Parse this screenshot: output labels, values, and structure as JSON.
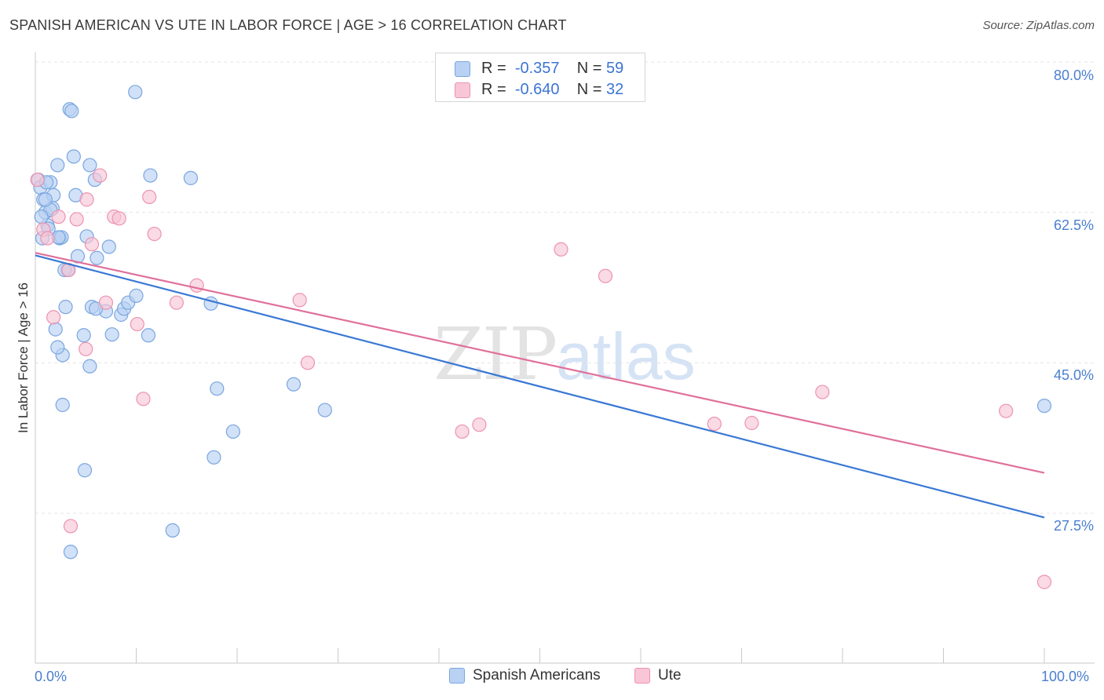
{
  "header": {
    "title": "SPANISH AMERICAN VS UTE IN LABOR FORCE | AGE > 16 CORRELATION CHART",
    "source": "Source: ZipAtlas.com"
  },
  "watermark": {
    "part1": "ZIP",
    "part2": "atlas"
  },
  "legend_top": {
    "rows": [
      {
        "r_label": "R =",
        "r_value": "-0.357",
        "n_label": "N =",
        "n_value": "59"
      },
      {
        "r_label": "R =",
        "r_value": "-0.640",
        "n_label": "N =",
        "n_value": "32"
      }
    ]
  },
  "colors": {
    "blue_fill": "#b9d1f3",
    "blue_stroke": "#7aa6e0",
    "blue_line": "#3a78d4",
    "pink_fill": "#f8c6d6",
    "pink_stroke": "#ec93b1",
    "pink_line": "#e0709a",
    "axis_text": "#4a7fd0",
    "grid": "#e4e4e4"
  },
  "chart_data": {
    "type": "scatter",
    "title": "SPANISH AMERICAN VS UTE IN LABOR FORCE | AGE > 16 CORRELATION CHART",
    "xlabel": "",
    "ylabel": "In Labor Force | Age > 16",
    "xlim": [
      0,
      100
    ],
    "ylim": [
      9,
      82
    ],
    "x_tick_labels": [
      "0.0%",
      "100.0%"
    ],
    "y_ticks": [
      27.5,
      45.0,
      62.5,
      80.0
    ],
    "y_tick_labels": [
      "27.5%",
      "45.0%",
      "62.5%",
      "80.0%"
    ],
    "grid": true,
    "legend_position": "bottom-center",
    "series": [
      {
        "name": "Spanish Americans",
        "r": -0.357,
        "n": 59,
        "trend": {
          "x": [
            0,
            100
          ],
          "y": [
            57.5,
            27.0
          ]
        },
        "points": [
          [
            0.3,
            66.3
          ],
          [
            0.5,
            65.4
          ],
          [
            0.8,
            64.0
          ],
          [
            1.0,
            62.5
          ],
          [
            1.2,
            61.0
          ],
          [
            1.5,
            66.0
          ],
          [
            1.8,
            64.5
          ],
          [
            1.3,
            60.6
          ],
          [
            0.7,
            59.5
          ],
          [
            1.7,
            63.0
          ],
          [
            2.2,
            68.0
          ],
          [
            2.4,
            59.5
          ],
          [
            2.6,
            59.6
          ],
          [
            3.2,
            55.8
          ],
          [
            3.4,
            74.5
          ],
          [
            3.6,
            74.3
          ],
          [
            3.8,
            69.0
          ],
          [
            4.0,
            64.5
          ],
          [
            4.2,
            57.4
          ],
          [
            4.8,
            48.2
          ],
          [
            5.1,
            59.7
          ],
          [
            5.4,
            68.0
          ],
          [
            5.6,
            51.5
          ],
          [
            5.9,
            66.3
          ],
          [
            6.1,
            57.2
          ],
          [
            7.0,
            51.0
          ],
          [
            7.3,
            58.5
          ],
          [
            7.6,
            48.3
          ],
          [
            8.5,
            50.6
          ],
          [
            8.8,
            51.3
          ],
          [
            9.2,
            52.0
          ],
          [
            10.0,
            52.8
          ],
          [
            9.9,
            76.5
          ],
          [
            11.2,
            48.2
          ],
          [
            11.4,
            66.8
          ],
          [
            15.4,
            66.5
          ],
          [
            17.4,
            51.9
          ],
          [
            18.0,
            42.0
          ],
          [
            19.6,
            37.0
          ],
          [
            17.7,
            34.0
          ],
          [
            25.6,
            42.5
          ],
          [
            28.7,
            39.5
          ],
          [
            13.6,
            25.5
          ],
          [
            3.5,
            23.0
          ],
          [
            4.9,
            32.5
          ],
          [
            2.7,
            40.1
          ],
          [
            2.7,
            45.9
          ],
          [
            2.2,
            46.8
          ],
          [
            2.0,
            48.9
          ],
          [
            5.4,
            44.6
          ],
          [
            3.0,
            51.5
          ],
          [
            6.0,
            51.3
          ],
          [
            2.9,
            55.8
          ],
          [
            1.5,
            62.8
          ],
          [
            1.0,
            64.0
          ],
          [
            2.3,
            59.6
          ],
          [
            0.6,
            62.0
          ],
          [
            1.1,
            66.0
          ],
          [
            100.0,
            40.0
          ]
        ]
      },
      {
        "name": "Ute",
        "r": -0.64,
        "n": 32,
        "trend": {
          "x": [
            0,
            100
          ],
          "y": [
            57.8,
            32.2
          ]
        },
        "points": [
          [
            0.2,
            66.3
          ],
          [
            0.8,
            60.5
          ],
          [
            1.2,
            59.5
          ],
          [
            2.3,
            62.0
          ],
          [
            1.8,
            50.3
          ],
          [
            3.5,
            26.0
          ],
          [
            4.1,
            61.7
          ],
          [
            5.1,
            64.0
          ],
          [
            5.0,
            46.6
          ],
          [
            5.6,
            58.8
          ],
          [
            6.4,
            66.8
          ],
          [
            7.0,
            52.0
          ],
          [
            7.8,
            62.0
          ],
          [
            8.3,
            61.8
          ],
          [
            10.1,
            49.5
          ],
          [
            10.7,
            40.8
          ],
          [
            11.3,
            64.3
          ],
          [
            11.8,
            60.0
          ],
          [
            14.0,
            52.0
          ],
          [
            16.0,
            54.0
          ],
          [
            26.2,
            52.3
          ],
          [
            27.0,
            45.0
          ],
          [
            42.3,
            37.0
          ],
          [
            44.0,
            37.8
          ],
          [
            52.1,
            58.2
          ],
          [
            56.5,
            55.1
          ],
          [
            67.3,
            37.9
          ],
          [
            71.0,
            38.0
          ],
          [
            78.0,
            41.6
          ],
          [
            96.2,
            39.4
          ],
          [
            100.0,
            19.5
          ],
          [
            3.3,
            55.8
          ]
        ]
      }
    ]
  }
}
